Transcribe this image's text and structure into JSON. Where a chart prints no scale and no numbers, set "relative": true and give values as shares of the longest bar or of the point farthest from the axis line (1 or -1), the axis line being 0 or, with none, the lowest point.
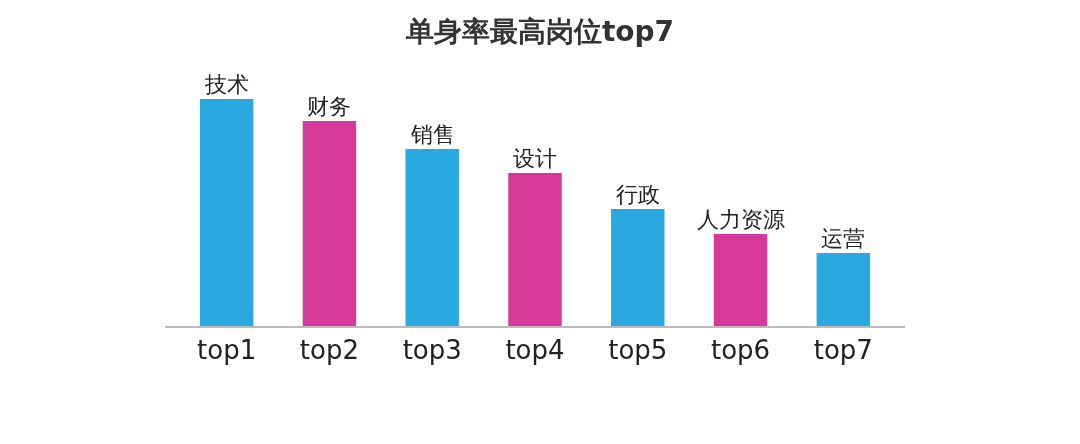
{
  "chart_data": {
    "type": "bar",
    "title": "单身率最高岗位top7",
    "relative": true,
    "categories": [
      "top1",
      "top2",
      "top3",
      "top4",
      "top5",
      "top6",
      "top7"
    ],
    "values": [
      1,
      0.903,
      0.78,
      0.674,
      0.515,
      0.405,
      0.322
    ],
    "colors": [
      "#2aa8e0",
      "#d6399a",
      "#2aa8e0",
      "#d6399a",
      "#2aa8e0",
      "#d6399a",
      "#2aa8e0"
    ],
    "annotations": [
      {
        "text": "技术",
        "x": "top1",
        "y": 1
      },
      {
        "text": "财务",
        "x": "top2",
        "y": 0.903
      },
      {
        "text": "销售",
        "x": "top3",
        "y": 0.78
      },
      {
        "text": "设计",
        "x": "top4",
        "y": 0.674
      },
      {
        "text": "行政",
        "x": "top5",
        "y": 0.515
      },
      {
        "text": "人力资源",
        "x": "top6",
        "y": 0.405
      },
      {
        "text": "运营",
        "x": "top7",
        "y": 0.322
      }
    ],
    "grid": false,
    "legend": false
  }
}
